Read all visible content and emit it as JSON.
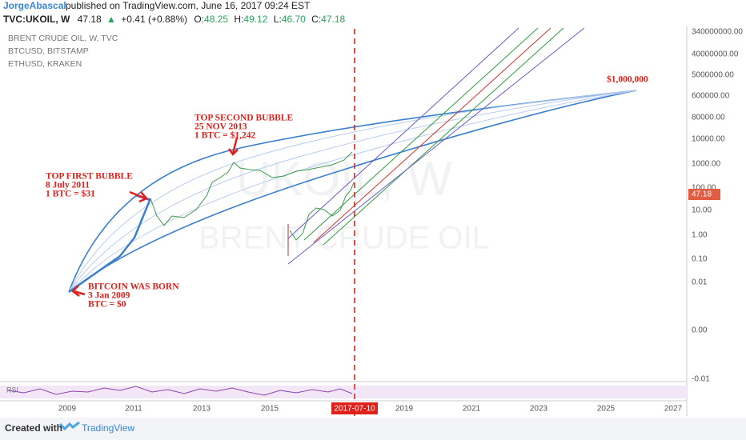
{
  "header": {
    "author": "JorgeAbascal",
    "published": "published on TradingView.com, June 16, 2017 09:24 EST"
  },
  "symbol_bar": {
    "symbol": "TVC:UKOIL, W",
    "price": "47.18",
    "change": "+0.41 (+0.88%)",
    "open_label": "O:",
    "open": "48.25",
    "high_label": "H:",
    "high": "49.12",
    "low_label": "L:",
    "low": "46.70",
    "close_label": "C:",
    "close": "47.18"
  },
  "legend": [
    "BRENT CRUDE OIL, W, TVC",
    "BTCUSD, BITSTAMP",
    "ETHUSD, KRAKEN"
  ],
  "watermark": {
    "symbol": "UKOIL, W",
    "name": "BRENT CRUDE OIL"
  },
  "price_axis": [
    "340000000.00",
    "40000000.00",
    "5000000.00",
    "600000.00",
    "80000.00",
    "10000.00",
    "1000.00",
    "100.00",
    "10.00",
    "1.00",
    "0.10",
    "0.01",
    "0.00",
    "-0.01"
  ],
  "price_badge": "47.18",
  "time_axis": [
    "2009",
    "2011",
    "2013",
    "2015",
    "2019",
    "2021",
    "2023",
    "2025",
    "2027"
  ],
  "time_badge": "2017-07-10",
  "annotations": [
    {
      "lines": [
        "$1,000,000"
      ]
    },
    {
      "lines": [
        "TOP SECOND BUBBLE",
        "25 NOV 2013",
        "1 BTC = $1,242"
      ]
    },
    {
      "lines": [
        "TOP FIRST BUBBLE",
        "8 July 2011",
        "1 BTC = $31"
      ]
    },
    {
      "lines": [
        "BITCOIN WAS BORN",
        "3 Jan 2009",
        "BTC = $0"
      ]
    }
  ],
  "rsi_label": "RSI",
  "footer": {
    "created_with": "Created with",
    "brand": "TradingView"
  }
}
